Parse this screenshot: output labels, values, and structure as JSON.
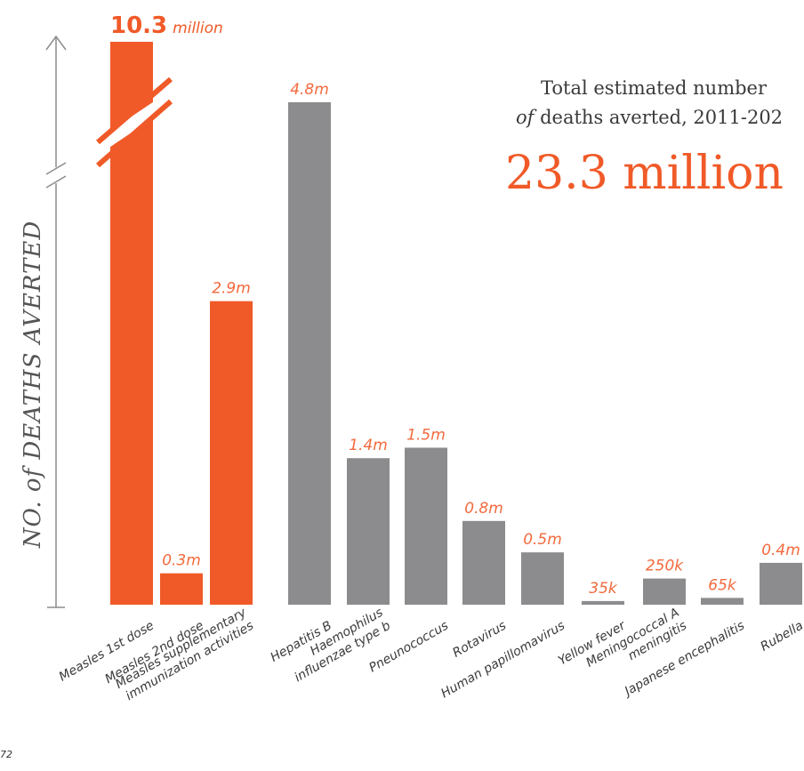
{
  "chart_data": {
    "type": "bar",
    "ylabel": "NO. of DEATHS AVERTED",
    "total": {
      "line1": "Total estimated number",
      "line2_prefix": "of",
      "line2_rest": " deaths averted, 2011-202",
      "value": "23.3 million"
    },
    "top_label": {
      "number": "10.3",
      "unit": "million"
    },
    "axis_break": true,
    "colors": {
      "measles": "#f05a28",
      "other": "#8c8c8e",
      "value_label": "#f26a3d",
      "axis": "#8c8c8c"
    },
    "categories": [
      {
        "label": [
          "Measles 1st dose"
        ],
        "value": 10.3,
        "display": "",
        "group": "measles"
      },
      {
        "label": [
          "Measles 2nd dose"
        ],
        "value": 0.3,
        "display": "0.3m",
        "group": "measles"
      },
      {
        "label": [
          "Measles supplementary",
          "immunization activities"
        ],
        "value": 2.9,
        "display": "2.9m",
        "group": "measles"
      },
      {
        "label": [
          "Hepatitis B"
        ],
        "value": 4.8,
        "display": "4.8m",
        "group": "other"
      },
      {
        "label": [
          "Haemophilus",
          "influenzae type b"
        ],
        "value": 1.4,
        "display": "1.4m",
        "group": "other"
      },
      {
        "label": [
          "Pneunococcus"
        ],
        "value": 1.5,
        "display": "1.5m",
        "group": "other"
      },
      {
        "label": [
          "Rotavirus"
        ],
        "value": 0.8,
        "display": "0.8m",
        "group": "other"
      },
      {
        "label": [
          "Human papillomavirus"
        ],
        "value": 0.5,
        "display": "0.5m",
        "group": "other"
      },
      {
        "label": [
          "Yellow fever"
        ],
        "value": 0.035,
        "display": "35k",
        "group": "other"
      },
      {
        "label": [
          "Meningococcal A",
          "meningitis"
        ],
        "value": 0.25,
        "display": "250k",
        "group": "other"
      },
      {
        "label": [
          "Japanese encephalitis"
        ],
        "value": 0.065,
        "display": "65k",
        "group": "other"
      },
      {
        "label": [
          "Rubella"
        ],
        "value": 0.4,
        "display": "0.4m",
        "group": "other"
      }
    ]
  },
  "page_number": "72"
}
